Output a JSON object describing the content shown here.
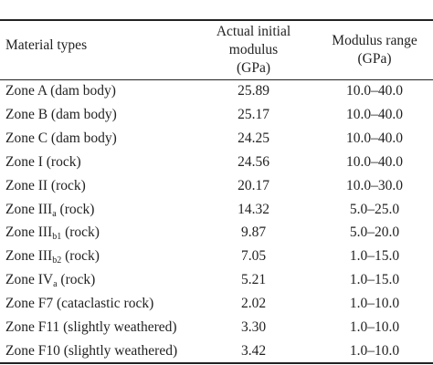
{
  "table": {
    "header": [
      [
        "Material types"
      ],
      [
        "Actual initial",
        "modulus",
        "(GPa)"
      ],
      [
        "Modulus range",
        "(GPa)"
      ]
    ],
    "rows": [
      [
        {
          "base": "Zone A (dam body)"
        },
        "25.89",
        "10.0–40.0"
      ],
      [
        {
          "base": "Zone B (dam body)"
        },
        "25.17",
        "10.0–40.0"
      ],
      [
        {
          "base": "Zone C (dam body)"
        },
        "24.25",
        "10.0–40.0"
      ],
      [
        {
          "base": "Zone I (rock)"
        },
        "24.56",
        "10.0–40.0"
      ],
      [
        {
          "base": "Zone II (rock)"
        },
        "20.17",
        "10.0–30.0"
      ],
      [
        {
          "base": "Zone III",
          "sub": "a",
          "suffix": " (rock)"
        },
        "14.32",
        "5.0–25.0"
      ],
      [
        {
          "base": "Zone III",
          "sub": "b1",
          "suffix": " (rock)"
        },
        "9.87",
        "5.0–20.0"
      ],
      [
        {
          "base": "Zone III",
          "sub": "b2",
          "suffix": " (rock)"
        },
        "7.05",
        "1.0–15.0"
      ],
      [
        {
          "base": "Zone IV",
          "sub": "a",
          "suffix": " (rock)"
        },
        "5.21",
        "1.0–15.0"
      ],
      [
        {
          "base": "Zone F7 (cataclastic rock)"
        },
        "2.02",
        "1.0–10.0"
      ],
      [
        {
          "base": "Zone F11 (slightly weathered)"
        },
        "3.30",
        "1.0–10.0"
      ],
      [
        {
          "base": "Zone F10 (slightly weathered)"
        },
        "3.42",
        "1.0–10.0"
      ]
    ]
  }
}
